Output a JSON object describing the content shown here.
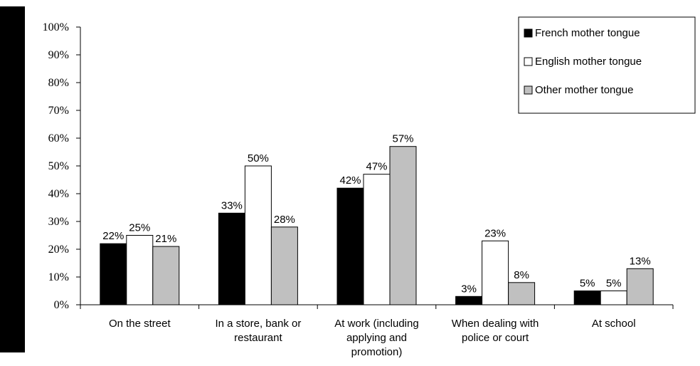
{
  "chart_data": {
    "type": "bar",
    "title": "",
    "xlabel": "",
    "ylabel": "",
    "ylim": [
      0,
      100
    ],
    "yticks": [
      "0%",
      "10%",
      "20%",
      "30%",
      "40%",
      "50%",
      "60%",
      "70%",
      "80%",
      "90%",
      "100%"
    ],
    "categories": [
      [
        "On the street"
      ],
      [
        "In a store, bank or",
        "restaurant"
      ],
      [
        "At work (including",
        "applying and",
        "promotion)"
      ],
      [
        "When dealing with",
        "police or court"
      ],
      [
        "At school"
      ]
    ],
    "series": [
      {
        "name": "French mother tongue",
        "color": "#000000",
        "values": [
          22,
          33,
          42,
          3,
          5
        ],
        "labels": [
          "22%",
          "33%",
          "42%",
          "3%",
          "5%"
        ]
      },
      {
        "name": "English mother tongue",
        "color": "#ffffff",
        "values": [
          25,
          50,
          47,
          23,
          5
        ],
        "labels": [
          "25%",
          "50%",
          "47%",
          "23%",
          "5%"
        ]
      },
      {
        "name": "Other mother tongue",
        "color": "#c0c0c0",
        "values": [
          21,
          28,
          57,
          8,
          13
        ],
        "labels": [
          "21%",
          "28%",
          "57%",
          "8%",
          "13%"
        ]
      }
    ],
    "grid": false,
    "legend": "top-right"
  }
}
